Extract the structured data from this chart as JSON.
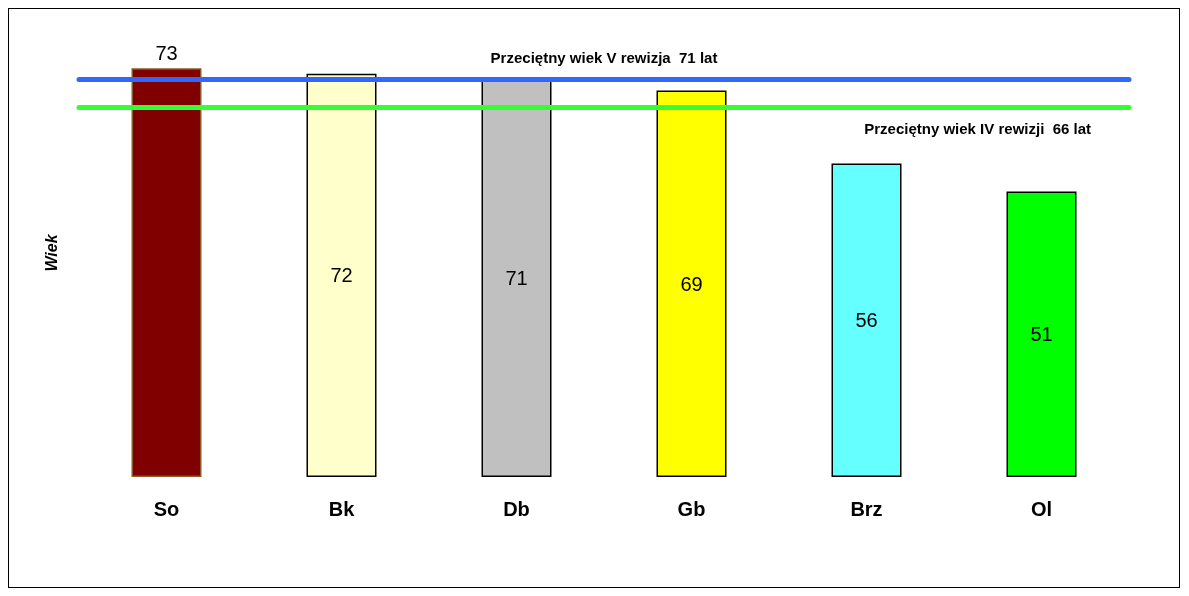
{
  "chart_data": {
    "type": "bar",
    "ylabel": "Wiek",
    "categories": [
      "So",
      "Bk",
      "Db",
      "Gb",
      "Brz",
      "Ol"
    ],
    "values": [
      73,
      72,
      71,
      69,
      56,
      51
    ],
    "colors": [
      "#800000",
      "#ffffcc",
      "#c0c0c0",
      "#ffff00",
      "#66ffff",
      "#00ff00"
    ],
    "data_labels": true,
    "tick_labels": "x",
    "grid": false,
    "ref_lines": [
      {
        "axis": "y",
        "value": 71,
        "label": "Przeciętny wiek V rewizja  71 lat",
        "color": "#3366ff"
      },
      {
        "axis": "y",
        "value": 66,
        "label": "Przeciętny wiek IV rewizji  66 lat",
        "color": "#33ff33"
      }
    ]
  }
}
